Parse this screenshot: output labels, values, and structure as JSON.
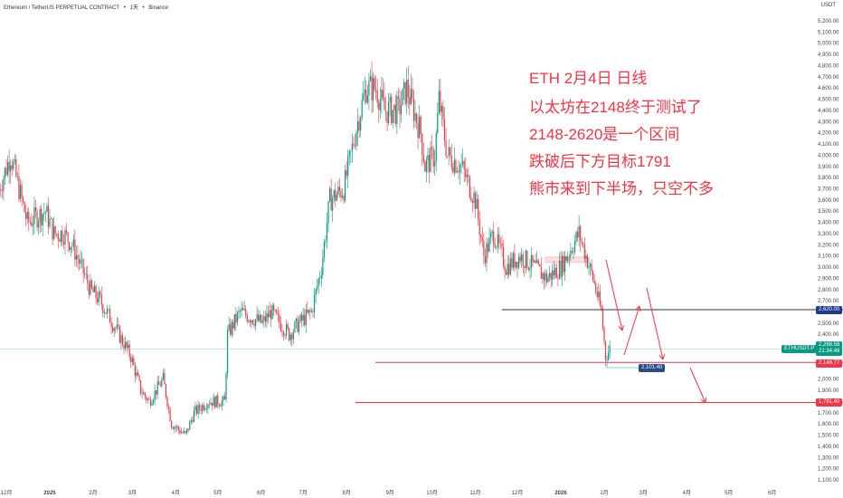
{
  "header": {
    "symbol": "Ethereum / TetherUS PERPETUAL CONTRACT",
    "sep": "•",
    "interval": "1天",
    "exchange": "Binance",
    "currency": "USDT"
  },
  "annotations": [
    "ETH 2月4日 日线",
    "以太坊在2148终于测试了",
    "2148-2620是一个区间",
    "跌破后下方目标1791",
    "熊市来到下半场，只空不多"
  ],
  "price_tags": {
    "resistance": "2,620.00",
    "current_symbol": "ETHUSDT.P",
    "current_price": "2,268.58",
    "countdown": "21:34:48",
    "support": "2,148.77",
    "target": "1,791.40",
    "low": "2,101.40"
  },
  "colors": {
    "up": "#089981",
    "down": "#f23645",
    "text": "#f23645",
    "navy": "#1e3a8a"
  },
  "chart_data": {
    "type": "candlestick",
    "y_range": [
      1100,
      5200
    ],
    "y_ticks_step": 100,
    "x_labels": [
      "12月",
      "2025",
      "2月",
      "3月",
      "4月",
      "5月",
      "6月",
      "7月",
      "8月",
      "9月",
      "10月",
      "11月",
      "12月",
      "2026",
      "2月",
      "3月",
      "4月",
      "5月",
      "6月"
    ],
    "x_label_days": [
      0,
      31,
      62,
      90,
      121,
      151,
      182,
      212,
      243,
      274,
      304,
      335,
      365,
      396,
      427,
      455,
      486,
      516,
      547
    ],
    "path_anchors_day_price": [
      [
        -5,
        3700
      ],
      [
        3,
        4000
      ],
      [
        15,
        3400
      ],
      [
        28,
        3500
      ],
      [
        34,
        3300
      ],
      [
        41,
        3300
      ],
      [
        47,
        3200
      ],
      [
        60,
        2800
      ],
      [
        67,
        2700
      ],
      [
        76,
        2500
      ],
      [
        89,
        2200
      ],
      [
        96,
        1900
      ],
      [
        102,
        1800
      ],
      [
        112,
        2000
      ],
      [
        118,
        1600
      ],
      [
        128,
        1500
      ],
      [
        134,
        1700
      ],
      [
        144,
        1800
      ],
      [
        156,
        1800
      ],
      [
        158,
        2400
      ],
      [
        167,
        2600
      ],
      [
        183,
        2500
      ],
      [
        189,
        2600
      ],
      [
        202,
        2400
      ],
      [
        209,
        2500
      ],
      [
        218,
        2600
      ],
      [
        225,
        3000
      ],
      [
        231,
        3600
      ],
      [
        241,
        3700
      ],
      [
        251,
        4300
      ],
      [
        257,
        4600
      ],
      [
        264,
        4600
      ],
      [
        270,
        4400
      ],
      [
        280,
        4400
      ],
      [
        286,
        4600
      ],
      [
        296,
        4200
      ],
      [
        299,
        3900
      ],
      [
        306,
        4000
      ],
      [
        309,
        4500
      ],
      [
        315,
        4000
      ],
      [
        325,
        3900
      ],
      [
        335,
        3600
      ],
      [
        341,
        3100
      ],
      [
        348,
        3300
      ],
      [
        357,
        3000
      ],
      [
        367,
        3100
      ],
      [
        377,
        3000
      ],
      [
        386,
        2900
      ],
      [
        396,
        3000
      ],
      [
        409,
        3300
      ],
      [
        419,
        2900
      ],
      [
        425,
        2600
      ],
      [
        428,
        2200
      ],
      [
        431,
        2268
      ]
    ],
    "levels": [
      2620,
      2268.58,
      2148.77,
      1791.4,
      2101.4
    ]
  }
}
